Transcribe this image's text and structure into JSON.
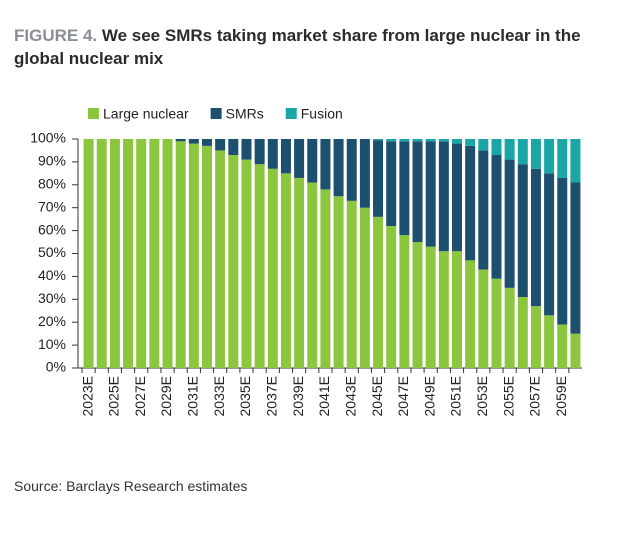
{
  "chart_data": {
    "type": "stacked-bar",
    "figure_label": "FIGURE 4.",
    "title": "We see SMRs taking market share from large nuclear in the global nuclear mix",
    "source": "Source: Barclays Research estimates",
    "categories": [
      "2023E",
      null,
      "2025E",
      null,
      "2027E",
      null,
      "2029E",
      null,
      "2031E",
      null,
      "2033E",
      null,
      "2035E",
      null,
      "2037E",
      null,
      "2039E",
      null,
      "2041E",
      null,
      "2043E",
      null,
      "2045E",
      null,
      "2047E",
      null,
      "2049E",
      null,
      "2051E",
      null,
      "2053E",
      null,
      "2055E",
      null,
      "2057E",
      null,
      "2059E",
      null
    ],
    "series": [
      {
        "name": "Large nuclear",
        "color": "#8cc63f",
        "values": [
          100,
          100,
          100,
          100,
          100,
          100,
          100,
          99,
          98,
          97,
          95,
          93,
          91,
          89,
          87,
          85,
          83,
          81,
          78,
          75,
          73,
          70,
          66,
          62,
          58,
          55,
          53,
          51,
          51,
          47,
          43,
          39,
          35,
          31,
          27,
          23,
          19,
          15
        ]
      },
      {
        "name": "SMRs",
        "color": "#1d4f6e",
        "values": [
          0,
          0,
          0,
          0,
          0,
          0,
          0,
          1,
          2,
          3,
          5,
          7,
          9,
          11,
          13,
          15,
          17,
          19,
          22,
          25,
          27,
          30,
          33.5,
          37,
          41,
          44,
          46,
          48,
          47,
          50,
          52,
          54,
          56,
          58,
          60,
          62,
          64,
          66
        ]
      },
      {
        "name": "Fusion",
        "color": "#1aa6a6",
        "values": [
          0,
          0,
          0,
          0,
          0,
          0,
          0,
          0,
          0,
          0,
          0,
          0,
          0,
          0,
          0,
          0,
          0,
          0,
          0,
          0,
          0,
          0,
          0.5,
          1,
          1,
          1,
          1,
          1,
          2,
          3,
          5,
          7,
          9,
          11,
          13,
          15,
          17,
          19
        ]
      }
    ],
    "ylim": [
      0,
      100
    ],
    "yticks": [
      {
        "value": 0,
        "label": "0%"
      },
      {
        "value": 10,
        "label": "10%"
      },
      {
        "value": 20,
        "label": "20%"
      },
      {
        "value": 30,
        "label": "30%"
      },
      {
        "value": 40,
        "label": "40%"
      },
      {
        "value": 50,
        "label": "50%"
      },
      {
        "value": 60,
        "label": "60%"
      },
      {
        "value": 70,
        "label": "70%"
      },
      {
        "value": 80,
        "label": "80%"
      },
      {
        "value": 90,
        "label": "90%"
      },
      {
        "value": 100,
        "label": "100%"
      }
    ],
    "legend": "top-left"
  }
}
